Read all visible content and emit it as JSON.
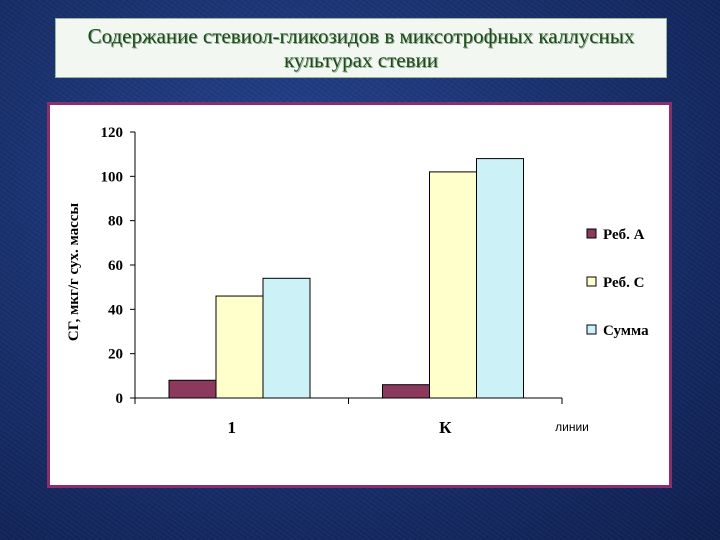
{
  "slide": {
    "title": "Содержание стевиол-гликозидов в миксотрофных каллусных культурах стевии"
  },
  "chart_data": {
    "type": "bar",
    "categories": [
      "1",
      "К"
    ],
    "series": [
      {
        "name": "Реб. А",
        "values": [
          8,
          6
        ],
        "color": "#8b3a5e"
      },
      {
        "name": "Реб. С",
        "values": [
          46,
          102
        ],
        "color": "#ffffcc"
      },
      {
        "name": "Сумма",
        "values": [
          54,
          108
        ],
        "color": "#ccf2f7"
      }
    ],
    "ylabel": "СГ, мкг/г сух. массы",
    "xlabel": "линии",
    "ylim": [
      0,
      120
    ],
    "yticks": [
      0,
      20,
      40,
      60,
      80,
      100,
      120
    ],
    "grid": false,
    "legend": "right"
  }
}
